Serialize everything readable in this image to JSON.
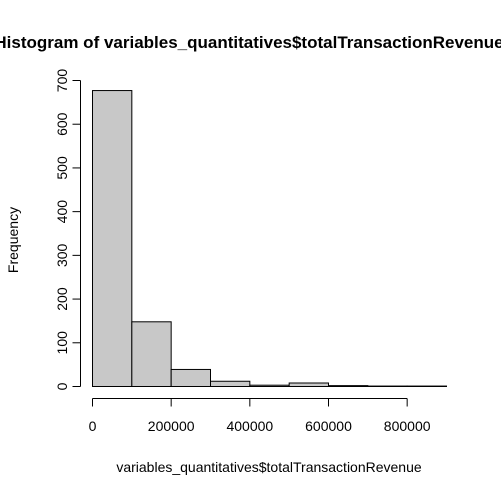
{
  "chart_data": {
    "type": "bar",
    "title": "Histogram of variables_quantitatives$totalTransactionRevenue",
    "xlabel": "variables_quantitatives$totalTransactionRevenue",
    "ylabel": "Frequency",
    "bin_width": 100000,
    "bin_edges": [
      0,
      100000,
      200000,
      300000,
      400000,
      500000,
      600000,
      700000,
      800000,
      900000
    ],
    "values": [
      677,
      148,
      39,
      12,
      3,
      8,
      2,
      1,
      1
    ],
    "xlim": [
      0,
      900000
    ],
    "ylim": [
      0,
      700
    ],
    "xticks": [
      0,
      200000,
      400000,
      600000,
      800000
    ],
    "xtick_labels": [
      "0",
      "200000",
      "400000",
      "600000",
      "800000"
    ],
    "yticks": [
      0,
      100,
      200,
      300,
      400,
      500,
      600,
      700
    ],
    "ytick_labels": [
      "0",
      "100",
      "200",
      "300",
      "400",
      "500",
      "600",
      "700"
    ],
    "bar_fill": "#c8c8c8",
    "bar_stroke": "#000000",
    "grid": false
  }
}
